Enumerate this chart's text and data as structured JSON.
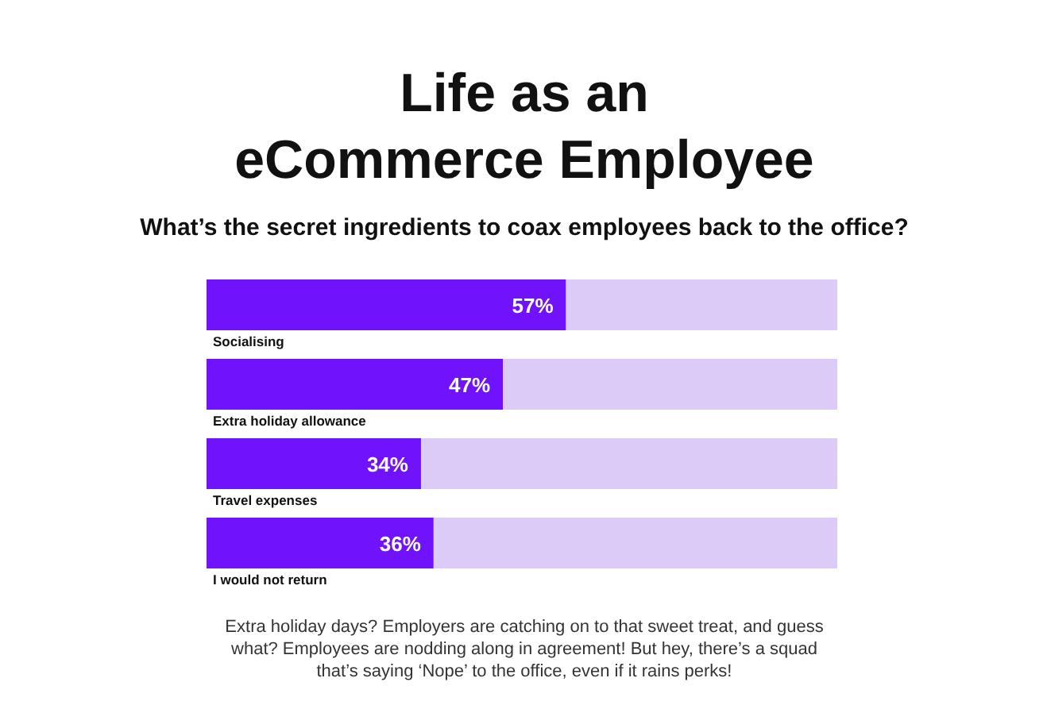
{
  "chart_data": {
    "type": "bar",
    "orientation": "horizontal",
    "stacked": true,
    "title": "Life as an eCommerce Employee",
    "subtitle": "What’s the secret ingredients to coax employees back to the office?",
    "categories": [
      "Socialising",
      "Extra holiday allowance",
      "Travel expenses",
      "I would not return"
    ],
    "series": [
      {
        "color": "#7112fd",
        "values": [
          57,
          47,
          34,
          36
        ],
        "value_labels": [
          "57%",
          "47%",
          "34%",
          "36%"
        ]
      },
      {
        "color": "#dccaf7",
        "values": [
          43,
          53,
          66,
          64
        ]
      }
    ],
    "annotations": [
      "Extra holiday days? Employers are catching on to that sweet treat, and guess what? Employees are nodding along in agreement! But hey, there’s a squad that’s saying ‘Nope’ to the office, even if it rains perks!"
    ]
  }
}
